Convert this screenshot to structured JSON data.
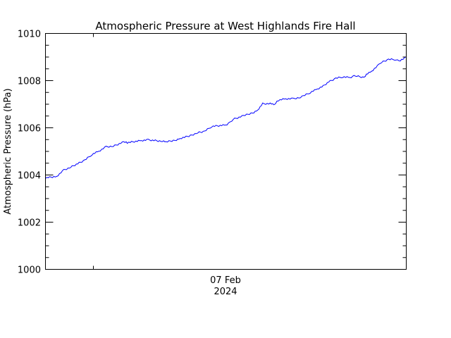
{
  "chart_data": {
    "type": "line",
    "title": "Atmospheric Pressure at West Highlands Fire Hall",
    "xlabel": "",
    "ylabel": "Atmospheric Pressure (hPa)",
    "ylim": [
      1000,
      1010
    ],
    "yticks": [
      1000,
      1002,
      1004,
      1006,
      1008,
      1010
    ],
    "y_minor_step": 0.5,
    "x_tick_label": [
      "07 Feb",
      "2024"
    ],
    "grid": false,
    "legend": null,
    "line_color": "#0000ff",
    "series": [
      {
        "name": "Atmospheric Pressure",
        "x_frac": [
          0.0,
          0.031,
          0.051,
          0.07,
          0.109,
          0.129,
          0.148,
          0.168,
          0.188,
          0.217,
          0.227,
          0.266,
          0.285,
          0.324,
          0.334,
          0.363,
          0.373,
          0.402,
          0.422,
          0.441,
          0.461,
          0.5,
          0.51,
          0.52,
          0.549,
          0.578,
          0.588,
          0.602,
          0.627,
          0.633,
          0.646,
          0.666,
          0.686,
          0.707,
          0.715,
          0.734,
          0.754,
          0.77,
          0.785,
          0.805,
          0.824,
          0.844,
          0.855,
          0.863,
          0.883,
          0.893,
          0.904,
          0.924,
          0.932,
          0.951,
          0.971,
          0.98,
          0.998
        ],
        "values": [
          1003.88,
          1003.94,
          1004.21,
          1004.33,
          1004.63,
          1004.87,
          1005.01,
          1005.19,
          1005.22,
          1005.4,
          1005.37,
          1005.46,
          1005.49,
          1005.43,
          1005.4,
          1005.49,
          1005.55,
          1005.67,
          1005.79,
          1005.85,
          1006.06,
          1006.12,
          1006.21,
          1006.36,
          1006.51,
          1006.66,
          1006.75,
          1007.02,
          1007.02,
          1006.96,
          1007.17,
          1007.23,
          1007.23,
          1007.29,
          1007.35,
          1007.5,
          1007.65,
          1007.77,
          1007.95,
          1008.1,
          1008.16,
          1008.13,
          1008.19,
          1008.19,
          1008.13,
          1008.31,
          1008.4,
          1008.67,
          1008.78,
          1008.9,
          1008.9,
          1008.84,
          1008.96
        ]
      }
    ]
  }
}
